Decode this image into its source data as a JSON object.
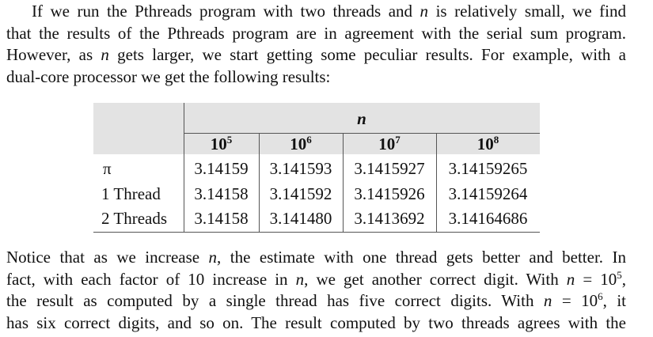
{
  "para1": {
    "line1": [
      "If we run the Pthreads program with two threads and ",
      "n",
      " is relatively small, we find"
    ],
    "line2": "that the results of the Pthreads program are in agreement with the serial sum program.",
    "line3": [
      "However, as ",
      "n",
      " gets larger, we start getting some peculiar results. For example, with a"
    ],
    "line4": "dual-core processor we get the following results:"
  },
  "table": {
    "group_header": "n",
    "columns": [
      {
        "base": "10",
        "exp": "5"
      },
      {
        "base": "10",
        "exp": "6"
      },
      {
        "base": "10",
        "exp": "7"
      },
      {
        "base": "10",
        "exp": "8"
      }
    ],
    "rows": [
      {
        "label": "π",
        "values": [
          "3.14159",
          "3.141593",
          "3.1415927",
          "3.14159265"
        ]
      },
      {
        "label": "1 Thread",
        "values": [
          "3.14158",
          "3.141592",
          "3.1415926",
          "3.14159264"
        ]
      },
      {
        "label": "2 Threads",
        "values": [
          "3.14158",
          "3.141480",
          "3.1413692",
          "3.14164686"
        ]
      }
    ]
  },
  "para2": {
    "line1": [
      "Notice that as we increase ",
      "n",
      ", the estimate with one thread gets better and better. In"
    ],
    "line2": [
      "fact, with each factor of 10 increase in ",
      "n",
      ", we get another correct digit. With ",
      "n",
      " = 10",
      "5",
      ","
    ],
    "line3": [
      "the result as computed by a single thread has five correct digits. With ",
      "n",
      " = 10",
      "6",
      ", it"
    ],
    "line4": "has six correct digits, and so on. The result computed by two threads agrees with the"
  }
}
